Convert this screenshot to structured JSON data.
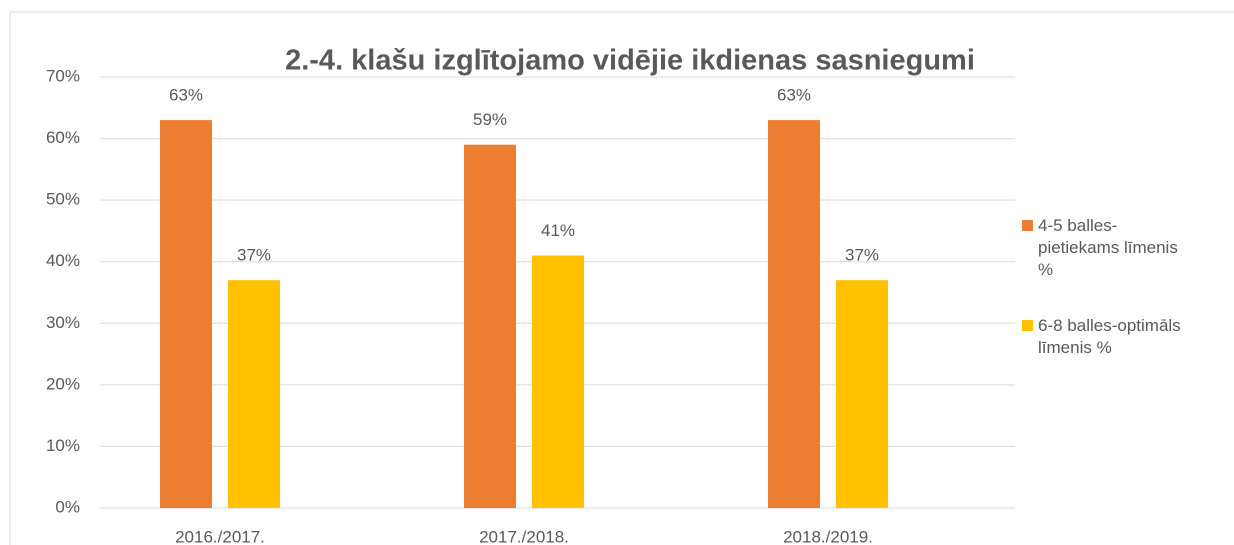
{
  "chart_data": {
    "type": "bar",
    "title": "2.-4. klašu izglītojamo vidējie ikdienas sasniegumi",
    "categories": [
      "2016./2017.",
      "2017./2018.",
      "2018./2019."
    ],
    "series": [
      {
        "name": "4-5 balles-pietiekams līmenis %",
        "color": "#ed7d31",
        "values": [
          63,
          59,
          63
        ],
        "value_labels": [
          "63%",
          "59%",
          "63%"
        ]
      },
      {
        "name": "6-8  balles-optimāls līmenis %",
        "color": "#ffc000",
        "values": [
          37,
          41,
          37
        ],
        "value_labels": [
          "37%",
          "41%",
          "37%"
        ]
      }
    ],
    "ylim": [
      0,
      70
    ],
    "yticks": [
      {
        "value": 0,
        "label": "0%"
      },
      {
        "value": 10,
        "label": "10%"
      },
      {
        "value": 20,
        "label": "20%"
      },
      {
        "value": 30,
        "label": "30%"
      },
      {
        "value": 40,
        "label": "40%"
      },
      {
        "value": 50,
        "label": "50%"
      },
      {
        "value": 60,
        "label": "60%"
      },
      {
        "value": 70,
        "label": "70%"
      }
    ],
    "grid": true
  }
}
